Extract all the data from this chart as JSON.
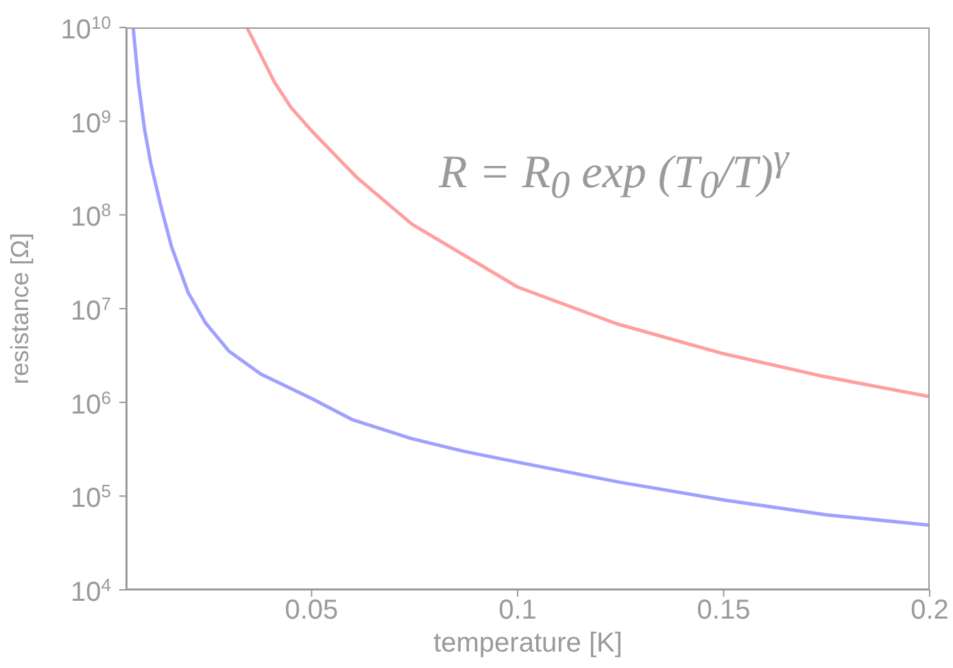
{
  "chart_data": {
    "type": "line",
    "xlabel": "temperature [K]",
    "ylabel": "resistance [Ω]",
    "log": "y",
    "xlim": [
      0.005,
      0.2
    ],
    "xticks": [
      0.05,
      0.1,
      0.15,
      0.2
    ],
    "ylim": [
      10000,
      10000000000
    ],
    "yticks": [
      {
        "value": 10000,
        "label": "10$^{4}$"
      },
      {
        "value": 100000,
        "label": "10$^{5}$"
      },
      {
        "value": 1000000,
        "label": "10$^{6}$"
      },
      {
        "value": 10000000,
        "label": "10$^{7}$"
      },
      {
        "value": 100000000,
        "label": "10$^{8}$"
      },
      {
        "value": 1000000000,
        "label": "10$^{9}$"
      },
      {
        "value": 10000000000,
        "label": "10$^{10}$"
      }
    ],
    "marker": "none",
    "line_style": "solid",
    "annotations": [
      "R = R$_{0}$ exp (T$_{0}$/T)$^{γ}$"
    ],
    "series": [
      {
        "color": "#a0a0ff",
        "x": [
          0.0067,
          0.008,
          0.0095,
          0.011,
          0.0135,
          0.016,
          0.02,
          0.0243,
          0.03,
          0.0377,
          0.05,
          0.06,
          0.0743,
          0.087,
          0.1,
          0.125,
          0.15,
          0.175,
          0.2
        ],
        "values": [
          10000000000,
          2500000000,
          800000000,
          350000000,
          120000000,
          46000000,
          15000000,
          7000000,
          3500000,
          2000000,
          1100000,
          650000,
          410000,
          300000,
          230000,
          140000,
          91000,
          63000,
          49000
        ]
      },
      {
        "color": "#ff9f9f",
        "x": [
          0.0343,
          0.041,
          0.045,
          0.05,
          0.061,
          0.0743,
          0.1,
          0.124,
          0.15,
          0.174,
          0.2
        ],
        "values": [
          10000000000,
          2600000000,
          1400000000,
          790000000,
          250000000,
          80000000,
          17000000,
          6900000,
          3300000,
          1900000,
          1150000
        ]
      }
    ]
  }
}
